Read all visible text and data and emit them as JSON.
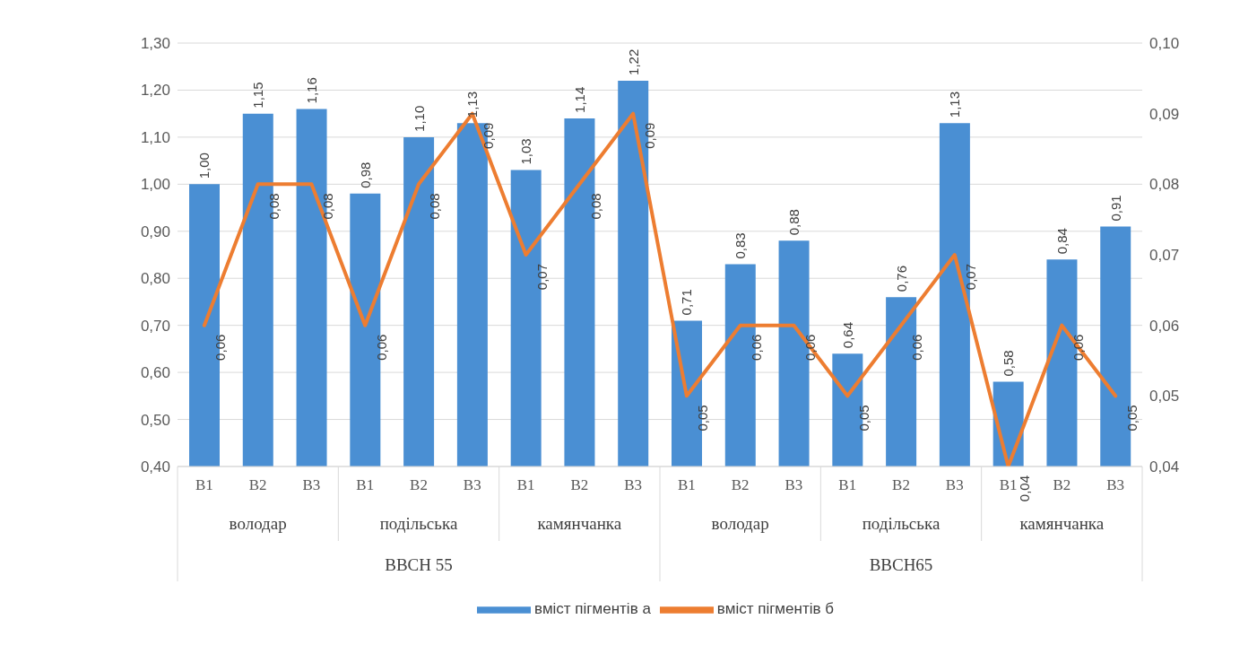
{
  "chart_data": {
    "type": "bar",
    "categories": [
      "В1",
      "В2",
      "В3",
      "В1",
      "В2",
      "В3",
      "В1",
      "В2",
      "В3",
      "В1",
      "В2",
      "В3",
      "В1",
      "В2",
      "В3",
      "В1",
      "В2",
      "В3"
    ],
    "annotations": [
      "володар",
      "подільська",
      "камянчанка",
      "володар",
      "подільська",
      "камянчанка",
      "BBCH 55",
      "BBCH65"
    ],
    "series": [
      {
        "name": "вміст пігментів а",
        "color": "#4a8fd3",
        "values": [
          1.0,
          1.15,
          1.16,
          0.98,
          1.1,
          1.13,
          1.03,
          1.14,
          1.22,
          0.71,
          0.83,
          0.88,
          0.64,
          0.76,
          1.13,
          0.58,
          0.84,
          0.91
        ],
        "value_labels": [
          "1,00",
          "1,15",
          "1,16",
          "0,98",
          "1,10",
          "1,13",
          "1,03",
          "1,14",
          "1,22",
          "0,71",
          "0,83",
          "0,88",
          "0,64",
          "0,76",
          "1,13",
          "0,58",
          "0,84",
          "0,91"
        ]
      },
      {
        "name": "вміст пігментів б",
        "type": "line",
        "axis": "y2",
        "color": "#ed7d31",
        "values": [
          0.06,
          0.08,
          0.08,
          0.06,
          0.08,
          0.09,
          0.07,
          0.08,
          0.09,
          0.05,
          0.06,
          0.06,
          0.05,
          0.06,
          0.07,
          0.04,
          0.06,
          0.05
        ],
        "value_labels": [
          "0,06",
          "0,08",
          "0,08",
          "0,06",
          "0,08",
          "0,09",
          "0,07",
          "0,08",
          "0,09",
          "0,05",
          "0,06",
          "0,06",
          "0,05",
          "0,06",
          "0,07",
          "0,04",
          "0,06",
          "0,05"
        ]
      }
    ],
    "ylim": [
      0.4,
      1.3
    ],
    "yticks": [
      {
        "value": 0.4,
        "label": "0,40"
      },
      {
        "value": 0.5,
        "label": "0,50"
      },
      {
        "value": 0.6,
        "label": "0,60"
      },
      {
        "value": 0.7,
        "label": "0,70"
      },
      {
        "value": 0.8,
        "label": "0,80"
      },
      {
        "value": 0.9,
        "label": "0,90"
      },
      {
        "value": 1.0,
        "label": "1,00"
      },
      {
        "value": 1.1,
        "label": "1,10"
      },
      {
        "value": 1.2,
        "label": "1,20"
      },
      {
        "value": 1.3,
        "label": "1,30"
      }
    ],
    "y2lim": [
      0.04,
      0.1
    ],
    "y2ticks": [
      {
        "value": 0.04,
        "label": "0,04"
      },
      {
        "value": 0.05,
        "label": "0,05"
      },
      {
        "value": 0.06,
        "label": "0,06"
      },
      {
        "value": 0.07,
        "label": "0,07"
      },
      {
        "value": 0.08,
        "label": "0,08"
      },
      {
        "value": 0.09,
        "label": "0,09"
      },
      {
        "value": 0.1,
        "label": "0,10"
      }
    ],
    "grid": "y",
    "legend": "bottom",
    "marker": "none",
    "line_style": "solid"
  }
}
